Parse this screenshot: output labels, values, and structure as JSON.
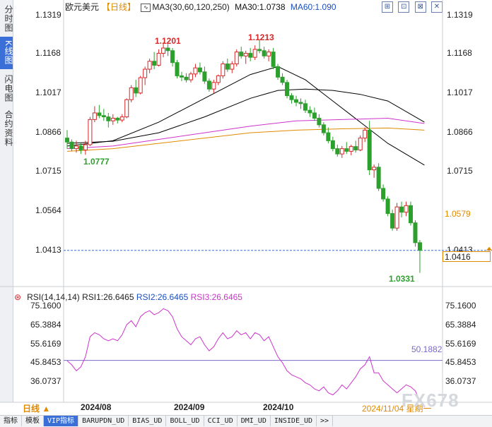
{
  "sidebar": {
    "tabs": [
      {
        "label": "分时图",
        "active": false
      },
      {
        "label": "K线图",
        "active": true
      },
      {
        "label": "闪电图",
        "active": false
      },
      {
        "label": "合约资料",
        "active": false
      }
    ]
  },
  "header": {
    "symbol": "欧元美元",
    "period_tag": "【日线】",
    "ma_label": "MA3(30,60,120,250)",
    "ma30_label": "MA30:1.0738",
    "ma60_label": "MA60:1.090"
  },
  "toolbar_icons": [
    "expand-icon",
    "fit-icon",
    "zoom-icon",
    "close-icon"
  ],
  "price_axis": {
    "left_ticks": [
      "1.1319",
      "1.1168",
      "1.1017",
      "1.0866",
      "1.0715",
      "1.0564",
      "1.0413"
    ],
    "right_ticks": [
      "1.1319",
      "1.1168",
      "1.1017",
      "1.0866",
      "1.0715"
    ],
    "right_current_tick": "1.0413",
    "highlight_label": "1.0579",
    "current_price": "1.0416"
  },
  "annotations": {
    "low_left": "1.0777",
    "high_1": "1.1201",
    "high_2": "1.1213",
    "low_right": "1.0331"
  },
  "rsi": {
    "header": "RSI(14,14,14)",
    "rsi1": "RSI1:26.6465",
    "rsi2": "RSI2:26.6465",
    "rsi3": "RSI3:26.6465",
    "ticks": [
      "75.1600",
      "65.3884",
      "55.6169",
      "45.8453",
      "36.0737"
    ],
    "reference_label": "50.1882"
  },
  "x_axis": {
    "labels": [
      "2024/08",
      "2024/09",
      "2024/10"
    ],
    "last_date": "2024/11/04 星期一"
  },
  "period_selector": "日线 ▲",
  "watermark": "FX678",
  "bottom_tabs": [
    {
      "label": "指标",
      "active": false
    },
    {
      "label": "模板",
      "active": false
    },
    {
      "label": "VIP指标",
      "active": true
    },
    {
      "label": "BARUPDN_UD",
      "active": false
    },
    {
      "label": "BIAS_UD",
      "active": false
    },
    {
      "label": "BOLL_UD",
      "active": false
    },
    {
      "label": "CCI_UD",
      "active": false
    },
    {
      "label": "DMI_UD",
      "active": false
    },
    {
      "label": "INSIDE_UD",
      "active": false
    },
    {
      "label": ">>",
      "active": false
    }
  ],
  "colors": {
    "up": "#d62728",
    "down": "#2ca02c",
    "ma30": "#000000",
    "ma60": "#000000",
    "ma120": "#cc33cc",
    "ma250": "#e08a00",
    "rsi": "#cc33cc",
    "accent": "#3a6fd8"
  },
  "chart_data": {
    "type": "candlestick",
    "ylim": [
      1.029,
      1.134
    ],
    "candles": [
      {
        "o": 1.084,
        "h": 1.087,
        "l": 1.08,
        "c": 1.0825
      },
      {
        "o": 1.0825,
        "h": 1.0835,
        "l": 1.079,
        "c": 1.08
      },
      {
        "o": 1.08,
        "h": 1.083,
        "l": 1.0785,
        "c": 1.081
      },
      {
        "o": 1.081,
        "h": 1.082,
        "l": 1.078,
        "c": 1.0795
      },
      {
        "o": 1.0795,
        "h": 1.083,
        "l": 1.0777,
        "c": 1.0815
      },
      {
        "o": 1.0815,
        "h": 1.092,
        "l": 1.081,
        "c": 1.091
      },
      {
        "o": 1.091,
        "h": 1.096,
        "l": 1.09,
        "c": 1.0935
      },
      {
        "o": 1.0935,
        "h": 1.0965,
        "l": 1.0915,
        "c": 1.0925
      },
      {
        "o": 1.0925,
        "h": 1.095,
        "l": 1.0905,
        "c": 1.092
      },
      {
        "o": 1.092,
        "h": 1.0935,
        "l": 1.088,
        "c": 1.0905
      },
      {
        "o": 1.0905,
        "h": 1.093,
        "l": 1.089,
        "c": 1.0915
      },
      {
        "o": 1.0915,
        "h": 1.092,
        "l": 1.0895,
        "c": 1.0908
      },
      {
        "o": 1.0908,
        "h": 1.093,
        "l": 1.09,
        "c": 1.092
      },
      {
        "o": 1.092,
        "h": 1.099,
        "l": 1.0915,
        "c": 1.0985
      },
      {
        "o": 1.0985,
        "h": 1.104,
        "l": 1.0975,
        "c": 1.103
      },
      {
        "o": 1.103,
        "h": 1.106,
        "l": 1.0995,
        "c": 1.101
      },
      {
        "o": 1.101,
        "h": 1.1075,
        "l": 1.1005,
        "c": 1.1068
      },
      {
        "o": 1.1068,
        "h": 1.111,
        "l": 1.104,
        "c": 1.11
      },
      {
        "o": 1.11,
        "h": 1.114,
        "l": 1.1085,
        "c": 1.113
      },
      {
        "o": 1.113,
        "h": 1.1165,
        "l": 1.11,
        "c": 1.1115
      },
      {
        "o": 1.1115,
        "h": 1.1175,
        "l": 1.111,
        "c": 1.116
      },
      {
        "o": 1.116,
        "h": 1.1201,
        "l": 1.1145,
        "c": 1.118
      },
      {
        "o": 1.118,
        "h": 1.1195,
        "l": 1.115,
        "c": 1.117
      },
      {
        "o": 1.117,
        "h": 1.118,
        "l": 1.111,
        "c": 1.1125
      },
      {
        "o": 1.1125,
        "h": 1.1135,
        "l": 1.1065,
        "c": 1.1075
      },
      {
        "o": 1.1075,
        "h": 1.109,
        "l": 1.1055,
        "c": 1.107
      },
      {
        "o": 1.107,
        "h": 1.1085,
        "l": 1.105,
        "c": 1.106
      },
      {
        "o": 1.106,
        "h": 1.109,
        "l": 1.105,
        "c": 1.1082
      },
      {
        "o": 1.1082,
        "h": 1.112,
        "l": 1.107,
        "c": 1.1105
      },
      {
        "o": 1.1105,
        "h": 1.1125,
        "l": 1.108,
        "c": 1.109
      },
      {
        "o": 1.109,
        "h": 1.111,
        "l": 1.1045,
        "c": 1.1055
      },
      {
        "o": 1.1055,
        "h": 1.1065,
        "l": 1.1015,
        "c": 1.1025
      },
      {
        "o": 1.1025,
        "h": 1.106,
        "l": 1.101,
        "c": 1.105
      },
      {
        "o": 1.105,
        "h": 1.108,
        "l": 1.104,
        "c": 1.1075
      },
      {
        "o": 1.1075,
        "h": 1.113,
        "l": 1.1065,
        "c": 1.112
      },
      {
        "o": 1.112,
        "h": 1.114,
        "l": 1.109,
        "c": 1.11
      },
      {
        "o": 1.11,
        "h": 1.113,
        "l": 1.1085,
        "c": 1.112
      },
      {
        "o": 1.112,
        "h": 1.1175,
        "l": 1.111,
        "c": 1.1165
      },
      {
        "o": 1.1165,
        "h": 1.1185,
        "l": 1.114,
        "c": 1.115
      },
      {
        "o": 1.115,
        "h": 1.117,
        "l": 1.112,
        "c": 1.116
      },
      {
        "o": 1.116,
        "h": 1.118,
        "l": 1.113,
        "c": 1.1145
      },
      {
        "o": 1.1145,
        "h": 1.119,
        "l": 1.1135,
        "c": 1.1175
      },
      {
        "o": 1.1175,
        "h": 1.1213,
        "l": 1.116,
        "c": 1.117
      },
      {
        "o": 1.117,
        "h": 1.1185,
        "l": 1.114,
        "c": 1.115
      },
      {
        "o": 1.115,
        "h": 1.1175,
        "l": 1.113,
        "c": 1.1165
      },
      {
        "o": 1.1165,
        "h": 1.118,
        "l": 1.11,
        "c": 1.111
      },
      {
        "o": 1.111,
        "h": 1.112,
        "l": 1.106,
        "c": 1.107
      },
      {
        "o": 1.107,
        "h": 1.1085,
        "l": 1.104,
        "c": 1.105
      },
      {
        "o": 1.105,
        "h": 1.106,
        "l": 1.099,
        "c": 1.1
      },
      {
        "o": 1.1,
        "h": 1.101,
        "l": 1.097,
        "c": 1.0985
      },
      {
        "o": 1.0985,
        "h": 1.1,
        "l": 1.096,
        "c": 1.0975
      },
      {
        "o": 1.0975,
        "h": 1.099,
        "l": 1.095,
        "c": 1.097
      },
      {
        "o": 1.097,
        "h": 1.0985,
        "l": 1.0935,
        "c": 1.0945
      },
      {
        "o": 1.0945,
        "h": 1.096,
        "l": 1.092,
        "c": 1.0935
      },
      {
        "o": 1.0935,
        "h": 1.0955,
        "l": 1.0905,
        "c": 1.0915
      },
      {
        "o": 1.0915,
        "h": 1.093,
        "l": 1.088,
        "c": 1.089
      },
      {
        "o": 1.089,
        "h": 1.09,
        "l": 1.085,
        "c": 1.086
      },
      {
        "o": 1.086,
        "h": 1.088,
        "l": 1.082,
        "c": 1.083
      },
      {
        "o": 1.083,
        "h": 1.0845,
        "l": 1.079,
        "c": 1.08
      },
      {
        "o": 1.08,
        "h": 1.0815,
        "l": 1.077,
        "c": 1.078
      },
      {
        "o": 1.078,
        "h": 1.081,
        "l": 1.0765,
        "c": 1.08
      },
      {
        "o": 1.08,
        "h": 1.0825,
        "l": 1.078,
        "c": 1.079
      },
      {
        "o": 1.079,
        "h": 1.0815,
        "l": 1.0775,
        "c": 1.0808
      },
      {
        "o": 1.0808,
        "h": 1.083,
        "l": 1.0785,
        "c": 1.0795
      },
      {
        "o": 1.0795,
        "h": 1.085,
        "l": 1.079,
        "c": 1.084
      },
      {
        "o": 1.084,
        "h": 1.088,
        "l": 1.0825,
        "c": 1.087
      },
      {
        "o": 1.087,
        "h": 1.0905,
        "l": 1.07,
        "c": 1.072
      },
      {
        "o": 1.072,
        "h": 1.074,
        "l": 1.069,
        "c": 1.073
      },
      {
        "o": 1.073,
        "h": 1.0745,
        "l": 1.064,
        "c": 1.065
      },
      {
        "o": 1.065,
        "h": 1.0665,
        "l": 1.06,
        "c": 1.061
      },
      {
        "o": 1.061,
        "h": 1.062,
        "l": 1.0545,
        "c": 1.0555
      },
      {
        "o": 1.0555,
        "h": 1.057,
        "l": 1.049,
        "c": 1.05
      },
      {
        "o": 1.05,
        "h": 1.0595,
        "l": 1.049,
        "c": 1.058
      },
      {
        "o": 1.058,
        "h": 1.06,
        "l": 1.054,
        "c": 1.056
      },
      {
        "o": 1.056,
        "h": 1.06,
        "l": 1.0545,
        "c": 1.0585
      },
      {
        "o": 1.0585,
        "h": 1.06,
        "l": 1.051,
        "c": 1.052
      },
      {
        "o": 1.052,
        "h": 1.053,
        "l": 1.043,
        "c": 1.0445
      },
      {
        "o": 1.0445,
        "h": 1.0455,
        "l": 1.0331,
        "c": 1.0416
      }
    ],
    "ma_series": [
      {
        "name": "MA30",
        "values": [
          [
            0,
            1.081
          ],
          [
            10,
            1.083
          ],
          [
            20,
            1.09
          ],
          [
            30,
            1.099
          ],
          [
            40,
            1.108
          ],
          [
            46,
            1.111
          ],
          [
            52,
            1.106
          ],
          [
            58,
            1.098
          ],
          [
            64,
            1.09
          ],
          [
            70,
            1.082
          ],
          [
            78,
            1.0738
          ]
        ]
      },
      {
        "name": "MA60",
        "values": [
          [
            0,
            1.082
          ],
          [
            10,
            1.0828
          ],
          [
            20,
            1.086
          ],
          [
            30,
            1.092
          ],
          [
            40,
            1.099
          ],
          [
            46,
            1.102
          ],
          [
            52,
            1.1025
          ],
          [
            58,
            1.102
          ],
          [
            64,
            1.1005
          ],
          [
            70,
            1.098
          ],
          [
            78,
            1.09
          ]
        ]
      },
      {
        "name": "MA120",
        "values": [
          [
            0,
            1.08
          ],
          [
            10,
            1.081
          ],
          [
            20,
            1.0835
          ],
          [
            30,
            1.086
          ],
          [
            40,
            1.0885
          ],
          [
            50,
            1.0905
          ],
          [
            60,
            1.091
          ],
          [
            70,
            1.0915
          ],
          [
            78,
            1.0895
          ]
        ]
      },
      {
        "name": "MA250",
        "values": [
          [
            0,
            1.079
          ],
          [
            10,
            1.08
          ],
          [
            20,
            1.082
          ],
          [
            30,
            1.084
          ],
          [
            40,
            1.086
          ],
          [
            50,
            1.087
          ],
          [
            60,
            1.0875
          ],
          [
            70,
            1.0878
          ],
          [
            78,
            1.087
          ]
        ]
      }
    ],
    "rsi_ylim": [
      30,
      80
    ],
    "rsi_reference": 50.1882,
    "rsi_values": [
      50,
      48,
      45,
      47,
      52,
      62,
      64,
      63,
      61,
      60,
      61,
      60,
      63,
      68,
      70,
      67,
      72,
      74,
      75,
      73,
      74,
      76,
      75,
      72,
      66,
      62,
      60,
      58,
      61,
      62,
      58,
      55,
      57,
      61,
      64,
      61,
      62,
      65,
      63,
      64,
      61,
      64,
      63,
      60,
      62,
      57,
      52,
      49,
      45,
      43,
      42,
      41,
      39,
      38,
      36,
      35,
      37,
      34,
      33,
      35,
      38,
      36,
      39,
      42,
      46,
      48,
      52,
      44,
      44,
      40,
      38,
      36,
      34,
      36,
      38,
      37,
      35,
      30,
      27
    ]
  }
}
